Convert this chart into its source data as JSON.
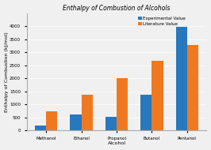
{
  "categories": [
    "Methanol",
    "Ethanol",
    "Propanol",
    "Butanol",
    "Pentanol"
  ],
  "experimental": [
    200,
    620,
    530,
    1380,
    4050
  ],
  "literature": [
    726,
    1367,
    2021,
    2670,
    3270
  ],
  "bar_color_experimental": "#2878bd",
  "bar_color_literature": "#f07820",
  "title": "Enthalpy of Combustion of Alcohols",
  "xlabel": "Alcohol",
  "ylabel": "Enthalpy of Combustion (kJ/mol)",
  "ylim": [
    0,
    4500
  ],
  "yticks": [
    0,
    500,
    1000,
    1500,
    2000,
    2500,
    3000,
    3500,
    4000
  ],
  "legend_experimental": "Experimental Value",
  "legend_literature": "Literature Value",
  "title_fontsize": 5.5,
  "label_fontsize": 4.5,
  "tick_fontsize": 4,
  "legend_fontsize": 4,
  "background_color": "#f0f0f0"
}
